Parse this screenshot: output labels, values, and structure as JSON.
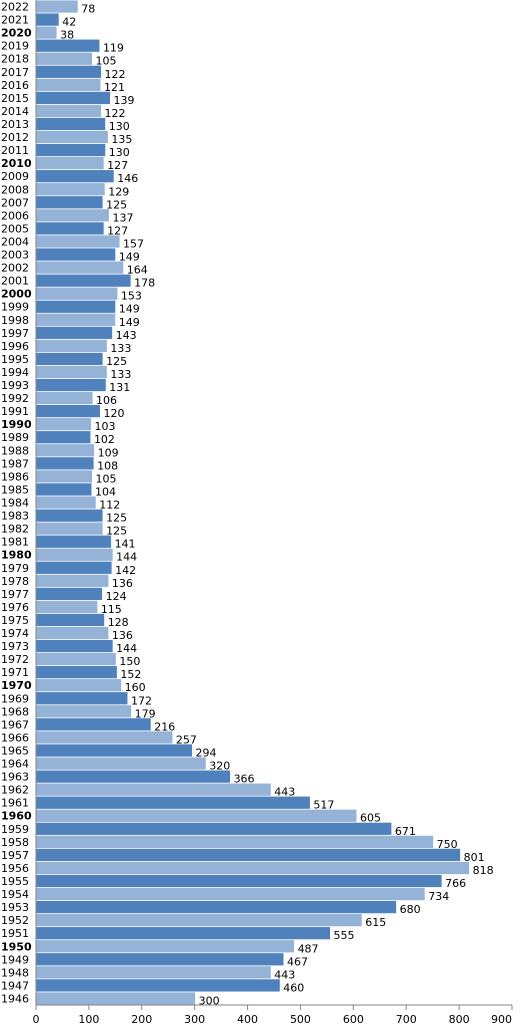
{
  "chart_data": {
    "type": "bar",
    "orientation": "horizontal",
    "categories": [
      "2022",
      "2021",
      "2020",
      "2019",
      "2018",
      "2017",
      "2016",
      "2015",
      "2014",
      "2013",
      "2012",
      "2011",
      "2010",
      "2009",
      "2008",
      "2007",
      "2006",
      "2005",
      "2004",
      "2003",
      "2002",
      "2001",
      "2000",
      "1999",
      "1998",
      "1997",
      "1996",
      "1995",
      "1994",
      "1993",
      "1992",
      "1991",
      "1990",
      "1989",
      "1988",
      "1987",
      "1986",
      "1985",
      "1984",
      "1983",
      "1982",
      "1981",
      "1980",
      "1979",
      "1978",
      "1977",
      "1976",
      "1975",
      "1974",
      "1973",
      "1972",
      "1971",
      "1970",
      "1969",
      "1968",
      "1967",
      "1966",
      "1965",
      "1964",
      "1963",
      "1962",
      "1961",
      "1960",
      "1959",
      "1958",
      "1957",
      "1956",
      "1955",
      "1954",
      "1953",
      "1952",
      "1951",
      "1950",
      "1949",
      "1948",
      "1947",
      "1946"
    ],
    "values": [
      78,
      42,
      38,
      119,
      105,
      122,
      121,
      139,
      122,
      130,
      135,
      130,
      127,
      146,
      129,
      125,
      137,
      127,
      157,
      149,
      164,
      178,
      153,
      149,
      149,
      143,
      133,
      125,
      133,
      131,
      106,
      120,
      103,
      102,
      109,
      108,
      105,
      104,
      112,
      125,
      125,
      141,
      144,
      142,
      136,
      124,
      115,
      128,
      136,
      144,
      150,
      152,
      160,
      172,
      179,
      216,
      257,
      294,
      320,
      366,
      443,
      517,
      605,
      671,
      750,
      801,
      818,
      766,
      734,
      680,
      615,
      555,
      487,
      467,
      443,
      460,
      300
    ],
    "bold_categories": [
      "2020",
      "2010",
      "2000",
      "1990",
      "1980",
      "1970",
      "1960",
      "1950"
    ],
    "xlim": [
      0,
      900
    ],
    "xticks": [
      "0",
      "100",
      "200",
      "300",
      "400",
      "500",
      "600",
      "700",
      "800",
      "900"
    ],
    "colors": {
      "dark": "#4f81bd",
      "light": "#95b3d7",
      "axis": "#868686"
    },
    "title": "",
    "xlabel": "",
    "ylabel": ""
  }
}
